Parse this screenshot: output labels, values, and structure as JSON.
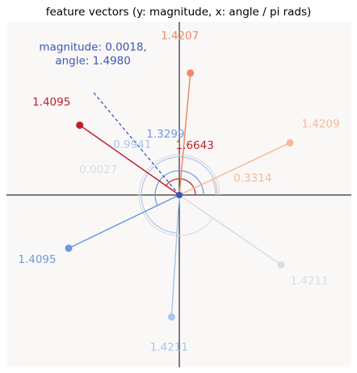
{
  "chart_data": {
    "type": "vector-plot",
    "title": "feature vectors (y: magnitude, x: angle / pi rads)",
    "xlabel": "",
    "ylabel": "",
    "grid": false,
    "axes_center": [
      0,
      0
    ],
    "xlim": [
      -1.55,
      1.55
    ],
    "ylim": [
      -1.55,
      1.55
    ],
    "vectors": [
      {
        "label": "1.4207",
        "angle_label": null,
        "end": [
          0.1,
          1.1
        ],
        "color": "#ee8866"
      },
      {
        "label": "1.4209",
        "angle_label": "0.3314",
        "end": [
          1.0,
          0.47
        ],
        "color": "#f6b89c"
      },
      {
        "label": "1.4211",
        "angle_label": "0.0027",
        "end": [
          0.92,
          -0.63
        ],
        "color": "#dcdcdc"
      },
      {
        "label": "1.4211",
        "angle_label": "0.9941",
        "end": [
          -0.07,
          -1.1
        ],
        "color": "#a9c7f2"
      },
      {
        "label": "1.4095",
        "angle_label": "1.3299",
        "end": [
          -1.0,
          -0.48
        ],
        "color": "#6f98e2"
      },
      {
        "label": "1.4095",
        "angle_label": "1.6643",
        "end": [
          -0.9,
          0.63
        ],
        "color": "#bf1e2d"
      }
    ],
    "mean_vector": {
      "label": "magnitude: 0.0018,\nangle: 1.4980",
      "end": [
        -0.78,
        0.93
      ],
      "color": "#3a56b8",
      "style": "dashed"
    }
  }
}
